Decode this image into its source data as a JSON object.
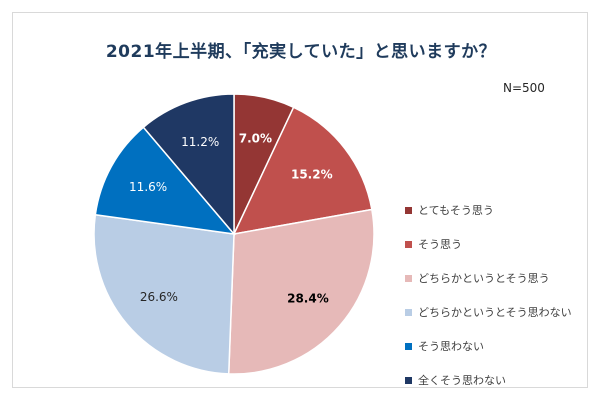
{
  "chart_data": {
    "type": "pie",
    "title": "2021年上半期、「充実していた」と思いますか？",
    "note": "N=500",
    "slices": [
      {
        "label": "とてもそう思う",
        "value": 7.0,
        "display": "7.0%",
        "color": "#943634",
        "text_color": "#ffffff",
        "bold": true
      },
      {
        "label": "そう思う",
        "value": 15.2,
        "display": "15.2%",
        "color": "#c0504d",
        "text_color": "#ffffff",
        "bold": true
      },
      {
        "label": "どちらかというとそう思う",
        "value": 28.4,
        "display": "28.4%",
        "color": "#e6b9b8",
        "text_color": "#000000",
        "bold": true
      },
      {
        "label": "どちらかというとそう思わない",
        "value": 26.6,
        "display": "26.6%",
        "color": "#b9cde5",
        "text_color": "#262626",
        "bold": false
      },
      {
        "label": "そう思わない",
        "value": 11.6,
        "display": "11.6%",
        "color": "#0070c0",
        "text_color": "#ffffff",
        "bold": false
      },
      {
        "label": "全くそう思わない",
        "value": 11.2,
        "display": "11.2%",
        "color": "#1f3864",
        "text_color": "#ffffff",
        "bold": false
      }
    ],
    "start": "12 o'clock",
    "direction": "clockwise",
    "legend_position": "right"
  }
}
